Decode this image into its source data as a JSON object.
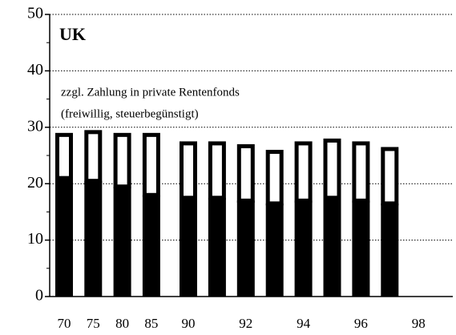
{
  "chart_data": {
    "type": "stacked-bar",
    "title": "UK",
    "annotations": [
      "zzgl. Zahlung in private Rentenfonds",
      "(freiwillig, steuerbegünstigt)"
    ],
    "categories": [
      "70",
      "75",
      "80",
      "85",
      "90",
      null,
      "92",
      null,
      "94",
      null,
      "96",
      null,
      "98"
    ],
    "series": [
      {
        "color": "#000000",
        "values": [
          21,
          20.5,
          19.5,
          18,
          17.5,
          17.5,
          17,
          16.5,
          17,
          17.5,
          17,
          16.5,
          null
        ]
      },
      {
        "color": "#ffffff",
        "values": [
          8,
          9,
          9.5,
          11,
          10,
          10,
          10,
          9.5,
          10.5,
          10.5,
          10.5,
          10,
          null
        ]
      }
    ],
    "ylim": [
      0,
      50
    ],
    "yticks": [
      0,
      10,
      20,
      30,
      40,
      50
    ],
    "grid": true
  }
}
